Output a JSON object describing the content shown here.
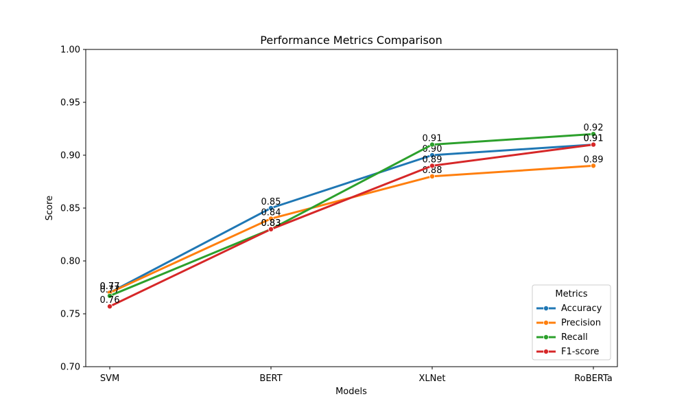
{
  "chart_data": {
    "type": "line",
    "title": "Performance Metrics Comparison",
    "xlabel": "Models",
    "ylabel": "Score",
    "categories": [
      "SVM",
      "BERT",
      "XLNet",
      "RoBERTa"
    ],
    "ylim": [
      0.7,
      1.0
    ],
    "yticks": [
      "0.70",
      "0.75",
      "0.80",
      "0.85",
      "0.90",
      "0.95",
      "1.00"
    ],
    "grid": false,
    "legend": {
      "title": "Metrics",
      "placement": "lower-right"
    },
    "series": [
      {
        "name": "Accuracy",
        "color": "#1f77b4",
        "values": [
          0.77,
          0.85,
          0.9,
          0.91
        ],
        "labels": [
          "0.77",
          "0.85",
          "0.90",
          "0.91"
        ]
      },
      {
        "name": "Precision",
        "color": "#ff7f0e",
        "values": [
          0.77,
          0.84,
          0.88,
          0.89
        ],
        "labels": [
          "0.77",
          "0.84",
          "0.88",
          "0.89"
        ]
      },
      {
        "name": "Recall",
        "color": "#2ca02c",
        "values": [
          0.767,
          0.83,
          0.91,
          0.92
        ],
        "labels": [
          "0.77",
          "0.83",
          "0.91",
          "0.92"
        ]
      },
      {
        "name": "F1-score",
        "color": "#d62728",
        "values": [
          0.757,
          0.83,
          0.89,
          0.91
        ],
        "labels": [
          "0.76",
          "0.83",
          "0.89",
          "0.91"
        ]
      }
    ]
  }
}
